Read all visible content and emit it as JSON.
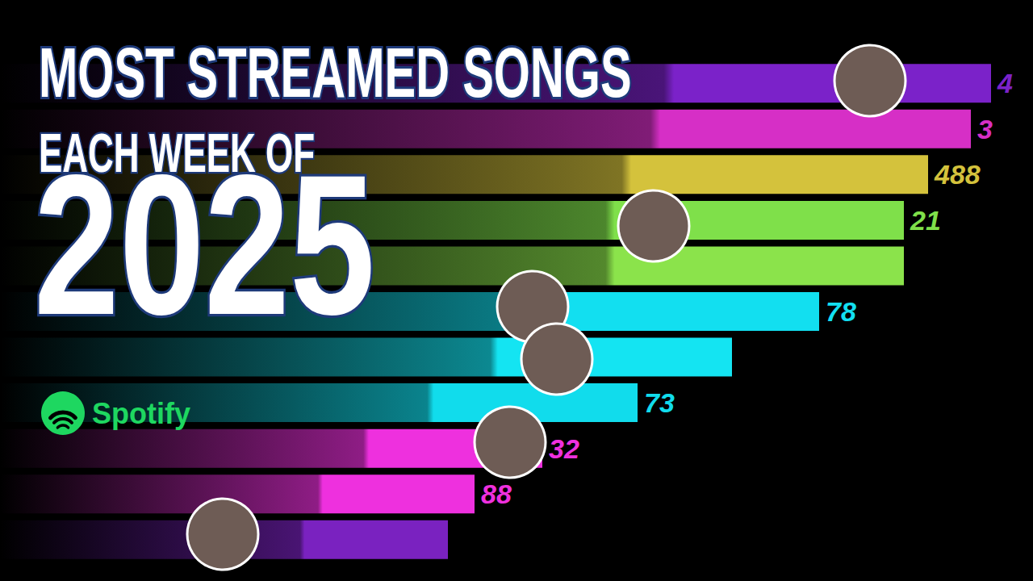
{
  "chart_data": {
    "type": "bar",
    "orientation": "horizontal",
    "title": "MOST STREAMED SONGS",
    "subtitle": "EACH WEEK OF",
    "annotations": [
      {
        "text": "2025"
      },
      {
        "text": "Spotify"
      }
    ],
    "categories": [
      null,
      null,
      null,
      null,
      null,
      null,
      null,
      null,
      null,
      null,
      null
    ],
    "values": [
      1228,
      1203,
      1150,
      1120,
      1120,
      1015,
      907,
      790,
      672,
      588,
      555
    ],
    "bar_labels": [
      "4",
      "3",
      "488",
      "21",
      null,
      "78",
      null,
      "73",
      "32",
      "88",
      null
    ],
    "colors": [
      "#7b22c9",
      "#d62fc6",
      "#d4c23c",
      "#7fe04a",
      "#8be34b",
      "#12dff0",
      "#14e4f2",
      "#11dcec",
      "#ee30de",
      "#ee30de",
      "#7a22c0"
    ],
    "xlim": [
      0,
      1280
    ],
    "tick_labels": false,
    "grid": false
  }
}
